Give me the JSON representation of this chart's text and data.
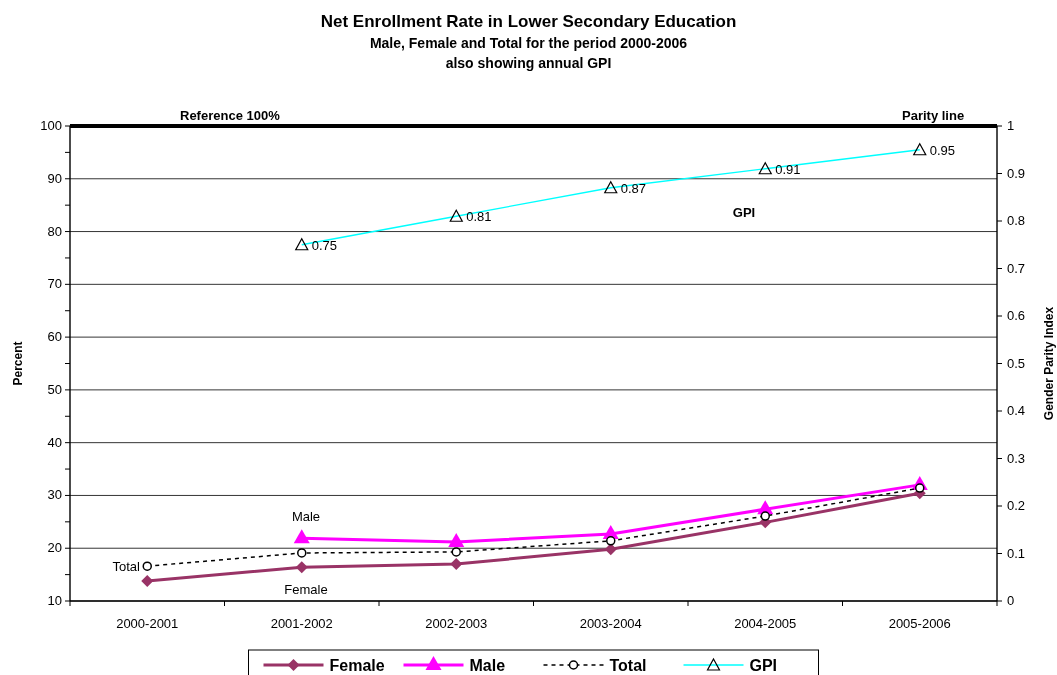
{
  "chart_data": {
    "type": "line",
    "title": "Net Enrollment Rate in Lower Secondary Education",
    "subtitle": "Male, Female and Total for the period 2000-2006\nalso showing annual GPI",
    "ylabel": "Percent",
    "y2label": "Gender Parity Index",
    "categories": [
      "2000-2001",
      "2001-2002",
      "2002-2003",
      "2003-2004",
      "2004-2005",
      "2005-2006"
    ],
    "series": [
      {
        "name": "Female",
        "color": "#993366",
        "marker": "diamond",
        "line_style": "solid",
        "values": [
          13.8,
          16.4,
          17.0,
          19.8,
          24.9,
          30.4
        ]
      },
      {
        "name": "Male",
        "color": "#ff00ff",
        "marker": "triangle",
        "line_style": "solid",
        "values": [
          null,
          21.9,
          21.2,
          22.7,
          27.4,
          32.0
        ]
      },
      {
        "name": "Total",
        "color": "#000000",
        "marker": "circle",
        "line_style": "dashed",
        "values": [
          16.6,
          19.1,
          19.3,
          21.4,
          26.1,
          31.4
        ]
      },
      {
        "name": "GPI",
        "color": "#00ffff",
        "marker": "triangle",
        "line_style": "solid",
        "axis": "y2",
        "values": [
          null,
          0.75,
          0.81,
          0.87,
          0.91,
          0.95
        ],
        "value_labels": [
          null,
          "0.75",
          "0.81",
          "0.87",
          "0.91",
          "0.95"
        ]
      }
    ],
    "ylim": [
      10,
      100
    ],
    "yticks": [
      10,
      {
        "value": 15,
        "label": null
      },
      20,
      {
        "value": 25,
        "label": null
      },
      30,
      {
        "value": 35,
        "label": null
      },
      40,
      {
        "value": 45,
        "label": null
      },
      50,
      {
        "value": 55,
        "label": null
      },
      60,
      {
        "value": 65,
        "label": null
      },
      70,
      {
        "value": 75,
        "label": null
      },
      80,
      {
        "value": 85,
        "label": null
      },
      90,
      {
        "value": 95,
        "label": null
      },
      100
    ],
    "y2lim": [
      0,
      1
    ],
    "y2ticks": [
      0,
      0.1,
      0.2,
      0.3,
      0.4,
      0.5,
      0.6,
      0.7,
      0.8,
      0.9,
      1
    ],
    "ref_lines": [
      {
        "axis": "y",
        "value": 100,
        "label": "Reference 100%",
        "color": "#000000"
      },
      {
        "axis": "y2",
        "value": 1,
        "label": "Parity line",
        "color": "#000000"
      }
    ],
    "annotations": [
      "Male",
      "Female",
      "Total",
      "GPI"
    ],
    "grid": "y",
    "legend": "bottom"
  }
}
